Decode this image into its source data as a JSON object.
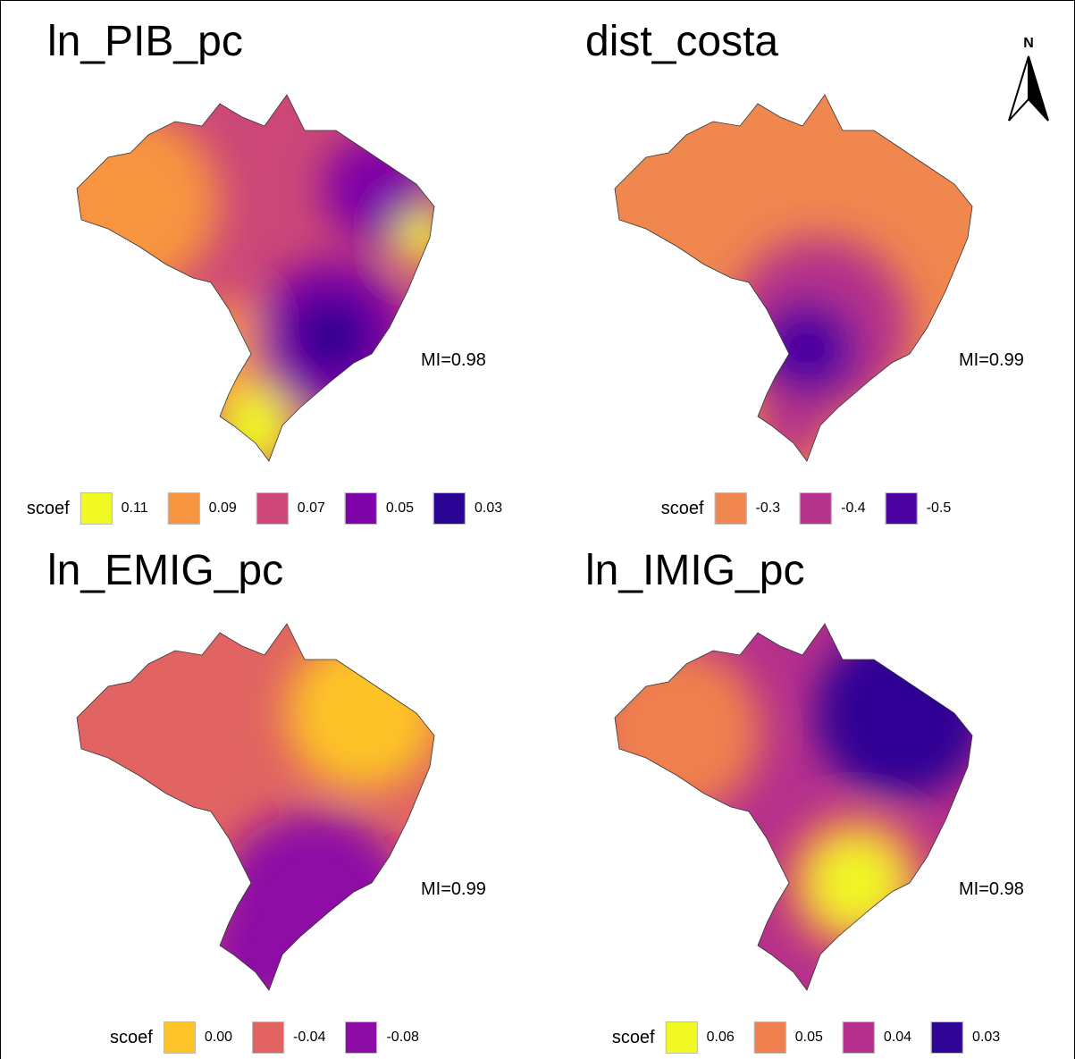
{
  "north_label": "N",
  "panels": [
    {
      "title": "ln_PIB_pc",
      "mi": "MI=0.98",
      "legend": {
        "title": "scoef",
        "items": [
          {
            "label": "0.11",
            "color": "#f0f921"
          },
          {
            "label": "0.09",
            "color": "#f89540"
          },
          {
            "label": "0.07",
            "color": "#cc4778"
          },
          {
            "label": "0.05",
            "color": "#7e03a8"
          },
          {
            "label": "0.03",
            "color": "#2a0593"
          }
        ]
      }
    },
    {
      "title": "dist_costa",
      "mi": "MI=0.99",
      "legend": {
        "title": "scoef",
        "items": [
          {
            "label": "-0.3",
            "color": "#f0874f"
          },
          {
            "label": "-0.4",
            "color": "#b5338a"
          },
          {
            "label": "-0.5",
            "color": "#4a03a0"
          }
        ]
      }
    },
    {
      "title": "ln_EMIG_pc",
      "mi": "MI=0.99",
      "legend": {
        "title": "scoef",
        "items": [
          {
            "label": "0.00",
            "color": "#fdc328"
          },
          {
            "label": "-0.04",
            "color": "#e16462"
          },
          {
            "label": "-0.08",
            "color": "#8d0ca5"
          }
        ]
      }
    },
    {
      "title": "ln_IMIG_pc",
      "mi": "MI=0.98",
      "legend": {
        "title": "scoef",
        "items": [
          {
            "label": "0.06",
            "color": "#f0f921"
          },
          {
            "label": "0.05",
            "color": "#f0804e"
          },
          {
            "label": "0.04",
            "color": "#b52f8c"
          },
          {
            "label": "0.03",
            "color": "#2e0595"
          }
        ]
      }
    }
  ]
}
